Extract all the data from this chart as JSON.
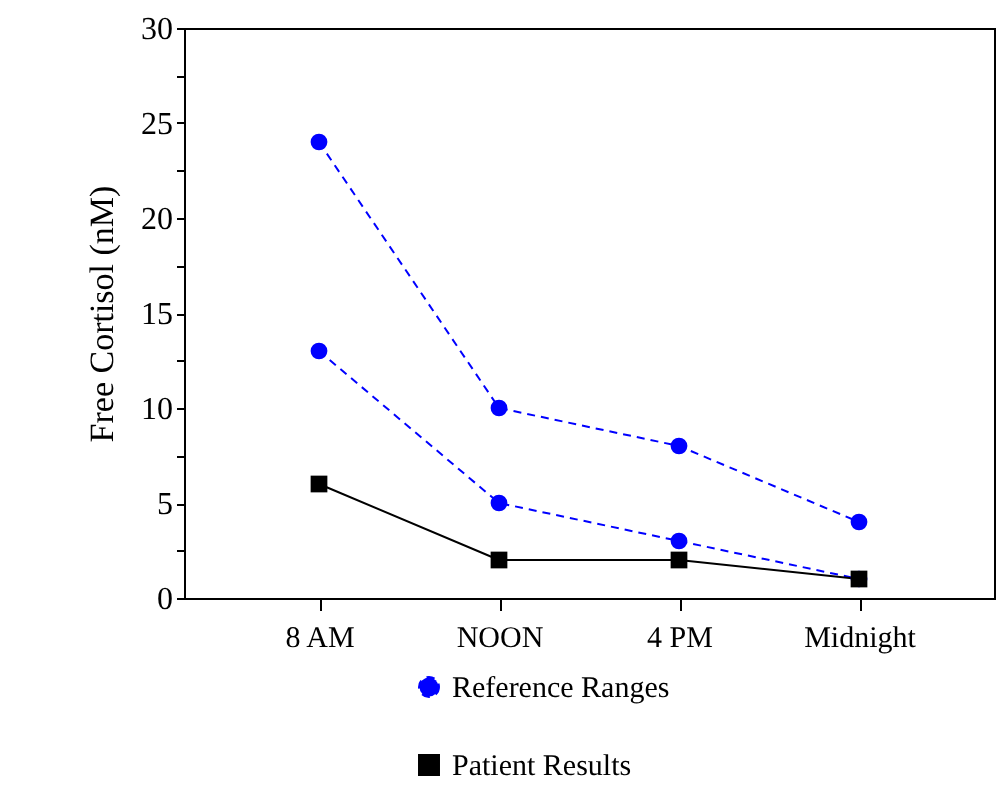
{
  "chart_data": {
    "type": "line",
    "ylabel": "Free Cortisol (nM)",
    "categories": [
      "8 AM",
      "NOON",
      "4 PM",
      "Midnight"
    ],
    "series": [
      {
        "name": "Reference Ranges",
        "color": "#0000ff",
        "marker": "circle",
        "line_style": "dashed",
        "values": [
          24,
          10,
          8,
          4
        ]
      },
      {
        "color": "#0000ff",
        "marker": "circle",
        "line_style": "dashed",
        "values": [
          13,
          5,
          3,
          1
        ]
      },
      {
        "name": "Patient Results",
        "color": "#000000",
        "marker": "square",
        "line_style": "solid",
        "values": [
          6,
          2,
          2,
          1
        ]
      }
    ],
    "ylim": [
      0,
      30
    ],
    "yticks": [
      0,
      {
        "value": 2.5,
        "label": null
      },
      5,
      {
        "value": 7.5,
        "label": null
      },
      10,
      {
        "value": 12.5,
        "label": null
      },
      15,
      {
        "value": 17.5,
        "label": null
      },
      20,
      {
        "value": 22.5,
        "label": null
      },
      25,
      {
        "value": 27.5,
        "label": null
      },
      30
    ],
    "grid": false,
    "legend": "bottom"
  }
}
